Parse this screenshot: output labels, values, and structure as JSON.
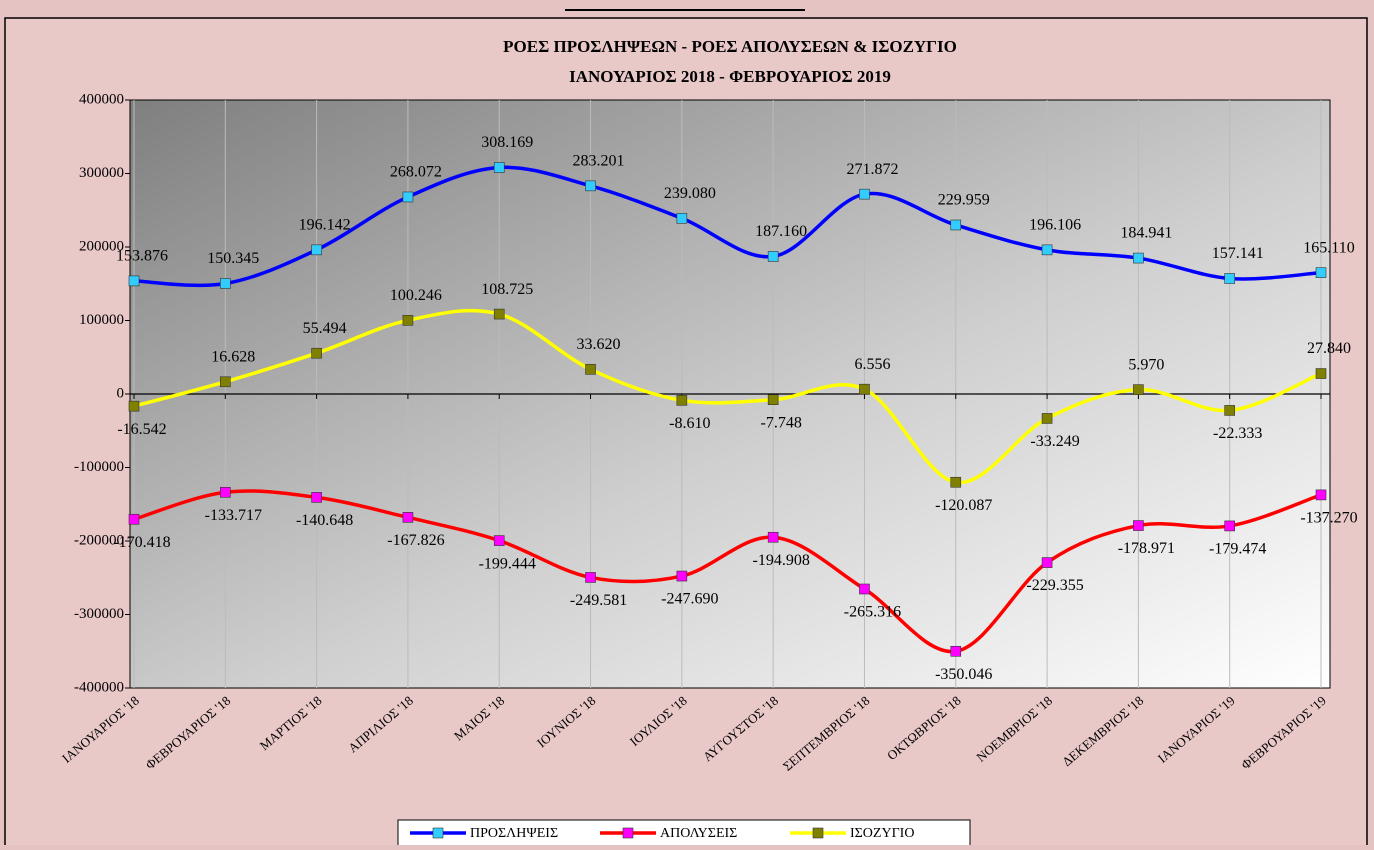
{
  "chart_data": {
    "type": "line",
    "title": "ΡΟΕΣ ΠΡΟΣΛΗΨΕΩΝ -  ΡΟΕΣ ΑΠΟΛΥΣΕΩΝ  & ΙΣΟΖΥΓΙΟ",
    "subtitle": "ΙΑΝΟΥΑΡΙΟΣ 2018  -  ΦΕΒΡΟΥΑΡΙΟΣ  2019",
    "categories": [
      "ΙΑΝΟΥΑΡΙΟΣ '18",
      "ΦΕΒΡΟΥΑΡΙΟΣ '18",
      "ΜΑΡΤΙΟΣ '18",
      "ΑΠΡΙΛΙΟΣ '18",
      "ΜΑΙΟΣ '18",
      "ΙΟΥΝΙΟΣ '18",
      "ΙΟΥΛΙΟΣ '18",
      "ΑΥΓΟΥΣΤΟΣ '18",
      "ΣΕΠΤΕΜΒΡΙΟΣ '18",
      "ΟΚΤΩΒΡΙΟΣ '18",
      "ΝΟΕΜΒΡΙΟΣ '18",
      "ΔΕΚΕΜΒΡΙΟΣ '18",
      "ΙΑΝΟΥΑΡΙΟΣ '19",
      "ΦΕΒΡΟΥΑΡΙΟΣ '19"
    ],
    "series": [
      {
        "name": "ΠΡΟΣΛΗΨΕΙΣ",
        "color": "#0000ff",
        "marker_color": "#33ccff",
        "values": [
          153876,
          150345,
          196142,
          268072,
          308169,
          283201,
          239080,
          187160,
          271872,
          229959,
          196106,
          184941,
          157141,
          165110
        ],
        "value_labels": [
          "153.876",
          "150.345",
          "196.142",
          "268.072",
          "308.169",
          "283.201",
          "239.080",
          "187.160",
          "271.872",
          "229.959",
          "196.106",
          "184.941",
          "157.141",
          "165.110"
        ]
      },
      {
        "name": "ΑΠΟΛΥΣΕΙΣ",
        "color": "#ff0000",
        "marker_color": "#ff00ff",
        "values": [
          -170418,
          -133717,
          -140648,
          -167826,
          -199444,
          -249581,
          -247690,
          -194908,
          -265316,
          -350046,
          -229355,
          -178971,
          -179474,
          -137270
        ],
        "value_labels": [
          "-170.418",
          "-133.717",
          "-140.648",
          "-167.826",
          "-199.444",
          "-249.581",
          "-247.690",
          "-194.908",
          "-265.316",
          "-350.046",
          "-229.355",
          "-178.971",
          "-179.474",
          "-137.270"
        ]
      },
      {
        "name": "ΙΣΟΖΥΓΙΟ",
        "color": "#ffff00",
        "marker_color": "#808000",
        "values": [
          -16542,
          16628,
          55494,
          100246,
          108725,
          33620,
          -8610,
          -7748,
          6556,
          -120087,
          -33249,
          5970,
          -22333,
          27840
        ],
        "value_labels": [
          "-16.542",
          "16.628",
          "55.494",
          "100.246",
          "108.725",
          "33.620",
          "-8.610",
          "-7.748",
          "6.556",
          "-120.087",
          "-33.249",
          "5.970",
          "-22.333",
          "27.840"
        ]
      }
    ],
    "ylim": [
      -400000,
      400000
    ],
    "yticks": [
      -400000,
      -300000,
      -200000,
      -100000,
      0,
      100000,
      200000,
      300000,
      400000
    ],
    "grid": true,
    "legend": "bottom"
  }
}
